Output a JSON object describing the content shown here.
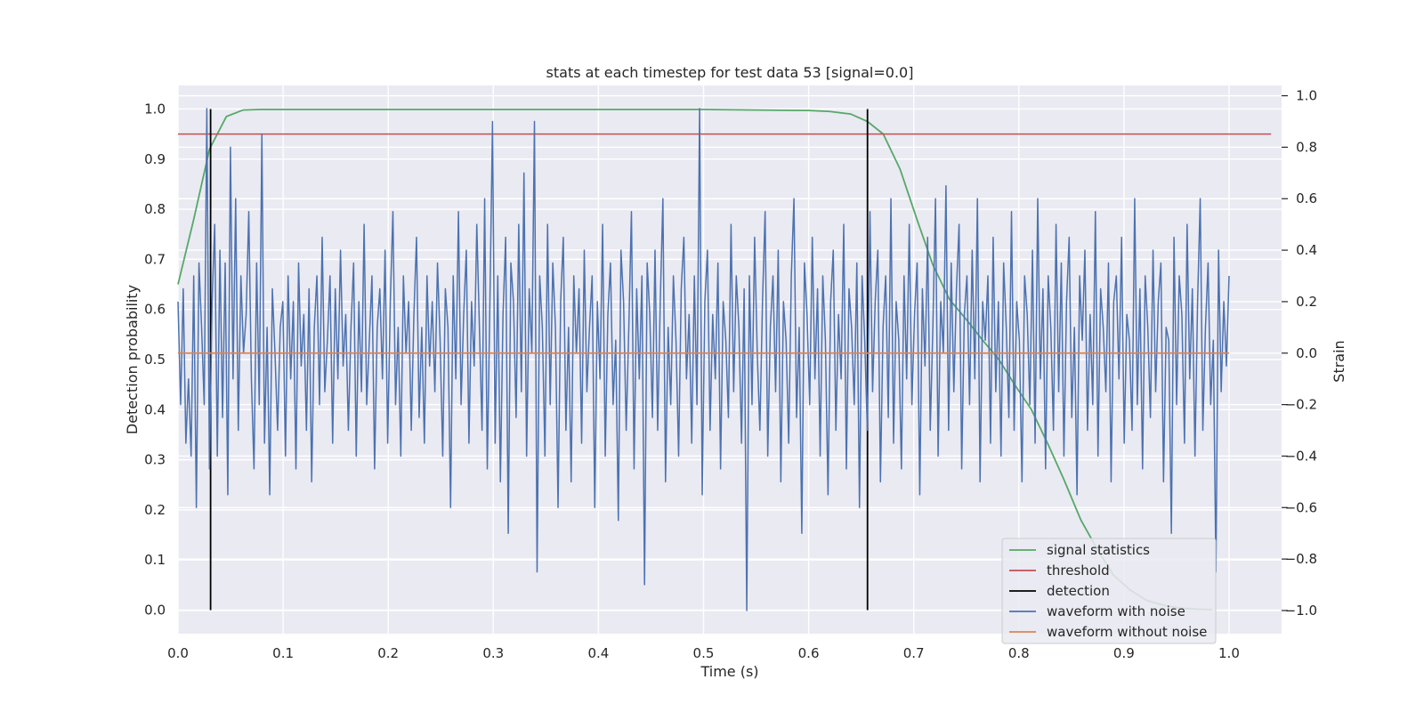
{
  "chart_data": {
    "type": "line",
    "title": "stats at each timestep for test data 53 [signal=0.0]",
    "xlabel": "Time (s)",
    "ylabel": "Detection probability",
    "y2label": "Strain",
    "xlim": [
      0.0,
      1.05
    ],
    "ylim": [
      -0.047,
      1.047
    ],
    "y2lim": [
      -1.09,
      1.04
    ],
    "xticks": [
      "0.0",
      "0.1",
      "0.2",
      "0.3",
      "0.4",
      "0.5",
      "0.6",
      "0.7",
      "0.8",
      "0.9",
      "1.0"
    ],
    "yticks": [
      "0.0",
      "0.1",
      "0.2",
      "0.3",
      "0.4",
      "0.5",
      "0.6",
      "0.7",
      "0.8",
      "0.9",
      "1.0"
    ],
    "y2ticks": [
      "−1.0",
      "−0.8",
      "−0.6",
      "−0.4",
      "−0.2",
      "0.0",
      "0.2",
      "0.4",
      "0.6",
      "0.8",
      "1.0"
    ],
    "grid": true,
    "legend_position": "lower right",
    "colors": {
      "signal_statistics": "#55a868",
      "threshold": "#c44e52",
      "detection": "#000000",
      "waveform_with_noise": "#4c72b0",
      "waveform_without_noise": "#dd8452",
      "plot_background": "#eaeaf2",
      "grid": "#ffffff"
    },
    "series": [
      {
        "name": "signal statistics",
        "axis": "left",
        "x": [
          0.0,
          0.015,
          0.03,
          0.046,
          0.062,
          0.078,
          0.1,
          0.2,
          0.3,
          0.4,
          0.5,
          0.55,
          0.6,
          0.62,
          0.64,
          0.656,
          0.671,
          0.687,
          0.703,
          0.718,
          0.734,
          0.75,
          0.765,
          0.781,
          0.796,
          0.812,
          0.828,
          0.843,
          0.859,
          0.875,
          0.89,
          0.906,
          0.921,
          0.937,
          0.953,
          0.968,
          0.984
        ],
        "y": [
          0.65,
          0.78,
          0.92,
          0.985,
          0.998,
          0.999,
          0.999,
          0.999,
          0.999,
          0.999,
          0.999,
          0.998,
          0.997,
          0.995,
          0.99,
          0.975,
          0.95,
          0.88,
          0.78,
          0.69,
          0.62,
          0.58,
          0.54,
          0.5,
          0.45,
          0.4,
          0.33,
          0.26,
          0.18,
          0.12,
          0.07,
          0.04,
          0.02,
          0.01,
          0.004,
          0.002,
          0.001
        ]
      },
      {
        "name": "threshold",
        "axis": "left",
        "x": [
          0.0,
          1.04
        ],
        "y": [
          0.95,
          0.95
        ]
      },
      {
        "name": "detection",
        "axis": "left",
        "segments": [
          {
            "x": 0.031,
            "y": [
              0.0,
              1.0
            ]
          },
          {
            "x": 0.656,
            "y": [
              0.0,
              1.0
            ]
          }
        ]
      },
      {
        "name": "waveform with noise",
        "axis": "right",
        "x_start": 0.0,
        "x_end": 1.0,
        "y": [
          0.2,
          -0.2,
          0.25,
          -0.35,
          -0.1,
          -0.4,
          0.3,
          -0.6,
          0.35,
          0.1,
          -0.2,
          0.95,
          -0.45,
          0.2,
          0.5,
          -0.4,
          0.4,
          -0.25,
          0.35,
          -0.55,
          0.8,
          -0.1,
          0.6,
          -0.3,
          0.3,
          0.0,
          0.15,
          0.55,
          -0.1,
          -0.45,
          0.35,
          -0.2,
          0.85,
          -0.35,
          0.1,
          -0.55,
          0.25,
          0.0,
          -0.3,
          0.1,
          0.2,
          -0.4,
          0.3,
          -0.1,
          0.2,
          -0.45,
          0.35,
          -0.05,
          0.15,
          -0.3,
          0.25,
          -0.5,
          0.1,
          0.3,
          -0.2,
          0.45,
          -0.15,
          0.05,
          0.3,
          -0.35,
          0.25,
          -0.1,
          0.4,
          -0.05,
          0.15,
          -0.3,
          0.1,
          0.35,
          -0.4,
          0.2,
          -0.15,
          0.5,
          -0.2,
          0.05,
          0.3,
          -0.45,
          0.1,
          0.25,
          -0.1,
          0.4,
          -0.35,
          0.2,
          0.55,
          -0.2,
          0.1,
          -0.4,
          0.3,
          0.0,
          0.2,
          -0.3,
          0.15,
          0.45,
          -0.25,
          0.1,
          -0.35,
          0.3,
          -0.05,
          0.2,
          -0.15,
          0.35,
          0.05,
          -0.4,
          0.25,
          0.1,
          -0.6,
          0.3,
          -0.1,
          0.55,
          -0.2,
          0.15,
          0.4,
          -0.35,
          0.2,
          -0.05,
          0.5,
          0.1,
          -0.3,
          0.6,
          -0.45,
          0.2,
          0.9,
          -0.35,
          0.3,
          -0.5,
          0.15,
          0.45,
          -0.7,
          0.35,
          0.2,
          -0.25,
          0.5,
          -0.15,
          0.7,
          -0.4,
          0.25,
          0.0,
          0.9,
          -0.85,
          0.3,
          0.1,
          -0.4,
          0.5,
          -0.2,
          0.35,
          0.1,
          -0.6,
          0.2,
          0.45,
          -0.3,
          0.1,
          -0.5,
          0.3,
          0.0,
          0.25,
          -0.35,
          0.4,
          -0.15,
          0.1,
          0.3,
          -0.6,
          0.2,
          -0.1,
          0.5,
          -0.4,
          0.15,
          0.35,
          -0.2,
          0.05,
          -0.65,
          0.4,
          0.2,
          -0.3,
          0.1,
          0.55,
          -0.45,
          0.25,
          -0.1,
          0.3,
          -0.9,
          0.35,
          0.15,
          -0.25,
          0.4,
          -0.3,
          0.2,
          0.6,
          -0.5,
          0.1,
          -0.2,
          0.3,
          0.05,
          -0.4,
          0.25,
          0.45,
          -0.1,
          0.15,
          -0.35,
          0.3,
          -0.2,
          0.95,
          -0.55,
          0.2,
          0.4,
          -0.3,
          0.15,
          -0.1,
          0.35,
          -0.45,
          0.2,
          0.05,
          -0.25,
          0.5,
          -0.15,
          0.3,
          0.1,
          -0.35,
          0.25,
          -1.0,
          0.3,
          -0.2,
          0.45,
          0.0,
          -0.3,
          0.2,
          0.55,
          -0.4,
          0.1,
          0.3,
          -0.15,
          0.4,
          -0.5,
          0.2,
          0.05,
          -0.35,
          0.3,
          0.6,
          -0.25,
          0.1,
          -0.7,
          0.35,
          0.15,
          -0.2,
          0.45,
          -0.1,
          0.25,
          -0.4,
          0.3,
          0.05,
          -0.55,
          0.2,
          0.4,
          -0.3,
          0.15,
          -0.1,
          0.5,
          -0.45,
          0.25,
          0.1,
          -0.2,
          0.35,
          -0.6,
          0.3,
          0.05,
          -0.3,
          0.55,
          -0.15,
          0.2,
          0.4,
          -0.5,
          0.1,
          0.3,
          -0.25,
          0.6,
          -0.35,
          0.2,
          0.05,
          -0.45,
          0.3,
          -0.1,
          0.5,
          -0.2,
          0.15,
          0.35,
          -0.55,
          0.25,
          -0.05,
          0.45,
          -0.3,
          0.1,
          0.6,
          -0.4,
          0.2,
          0.0,
          0.65,
          -0.3,
          0.35,
          -0.15,
          0.25,
          0.5,
          -0.45,
          0.15,
          0.3,
          -0.2,
          0.4,
          -0.1,
          0.6,
          -0.5,
          0.2,
          0.05,
          0.3,
          -0.35,
          0.45,
          -0.15,
          0.2,
          -0.4,
          0.35,
          0.1,
          -0.25,
          0.55,
          -0.3,
          0.2,
          0.05,
          -0.5,
          0.3,
          0.15,
          -0.2,
          0.4,
          -0.35,
          0.6,
          -0.1,
          0.25,
          -0.45,
          0.3,
          0.1,
          -0.3,
          0.5,
          -0.15,
          0.35,
          -0.4,
          0.2,
          0.45,
          -0.25,
          0.1,
          -0.55,
          0.3,
          0.05,
          0.4,
          -0.3,
          0.15,
          -0.2,
          0.55,
          -0.4,
          0.25,
          0.1,
          -0.15,
          0.35,
          -0.5,
          0.2,
          0.3,
          -0.1,
          0.45,
          -0.35,
          0.15,
          0.05,
          -0.3,
          0.6,
          -0.2,
          0.25,
          -0.45,
          0.3,
          0.1,
          -0.25,
          0.4,
          -0.15,
          0.2,
          0.35,
          -0.5,
          0.1,
          0.05,
          -0.7,
          0.45,
          -0.2,
          0.3,
          0.15,
          -0.35,
          0.5,
          -0.1,
          0.25,
          -0.4,
          0.2,
          0.6,
          -0.3,
          0.1,
          0.35,
          -0.2,
          0.05,
          -0.85,
          0.4,
          -0.15,
          0.2,
          -0.05,
          0.3
        ]
      },
      {
        "name": "waveform without noise",
        "axis": "right",
        "x": [
          0.0,
          1.0
        ],
        "y": [
          0.0,
          0.0
        ]
      }
    ]
  }
}
